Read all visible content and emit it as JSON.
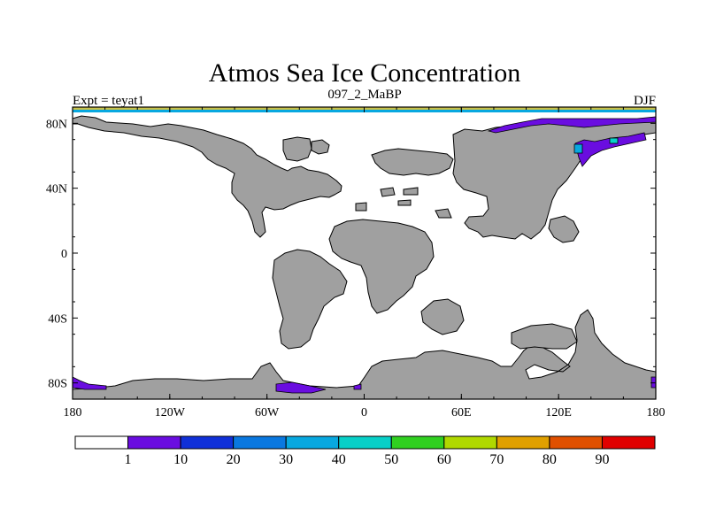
{
  "title": "Atmos Sea Ice Concentration",
  "left_label": "Expt = teyat1",
  "center_label": "097_2_MaBP",
  "right_label": "DJF",
  "x_ticks": [
    {
      "lon": -180,
      "label": "180"
    },
    {
      "lon": -120,
      "label": "120W"
    },
    {
      "lon": -60,
      "label": "60W"
    },
    {
      "lon": 0,
      "label": "0"
    },
    {
      "lon": 60,
      "label": "60E"
    },
    {
      "lon": 120,
      "label": "120E"
    },
    {
      "lon": 180,
      "label": "180"
    }
  ],
  "y_ticks": [
    {
      "lat": 80,
      "label": "80N"
    },
    {
      "lat": 40,
      "label": "40N"
    },
    {
      "lat": 0,
      "label": "0"
    },
    {
      "lat": -40,
      "label": "40S"
    },
    {
      "lat": -80,
      "label": "80S"
    }
  ],
  "lon_range": [
    -180,
    180
  ],
  "lat_range": [
    -90,
    90
  ],
  "colorbar": {
    "colors": [
      "#ffffff",
      "#6a0de0",
      "#1030d8",
      "#0a78e0",
      "#08a8e0",
      "#08d0c8",
      "#30d020",
      "#b0d800",
      "#e0a000",
      "#e05000",
      "#e00000"
    ],
    "labels": [
      "1",
      "10",
      "20",
      "30",
      "40",
      "50",
      "60",
      "70",
      "80",
      "90"
    ]
  },
  "colors": {
    "land": "#a0a0a0",
    "ice_low": "#6a0de0",
    "ice_mid": "#08a8e0",
    "ice_high": "#08d0c8"
  }
}
